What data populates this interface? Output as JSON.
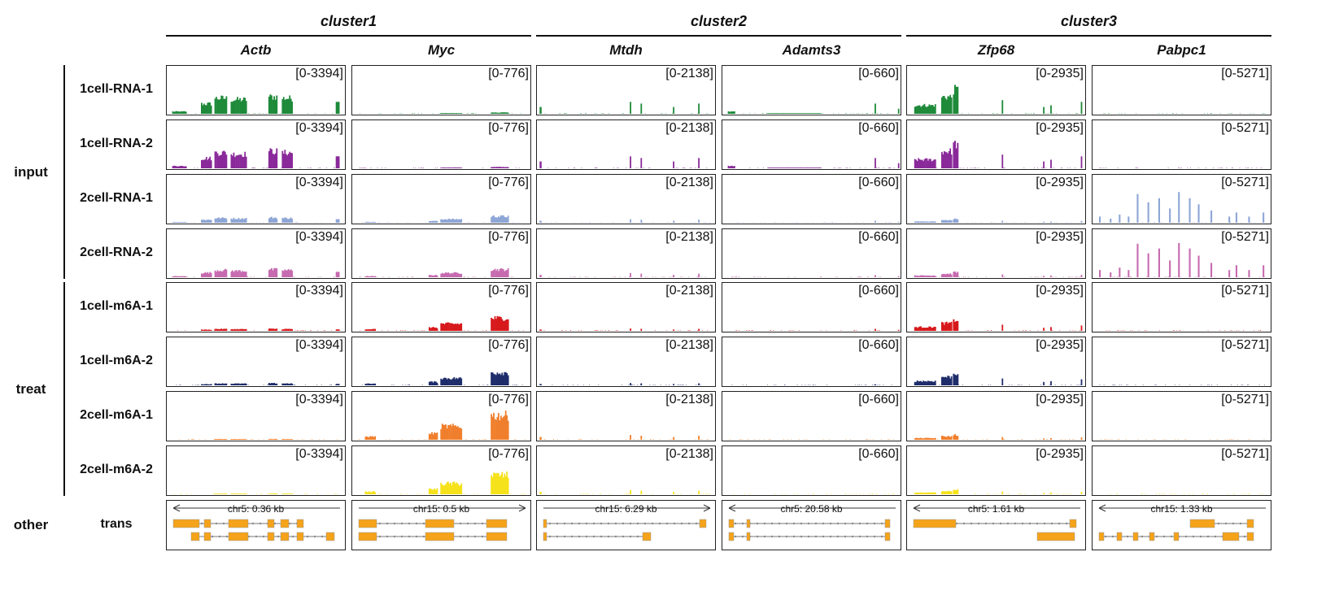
{
  "chart_data": {
    "type": "coverage_tracks",
    "clusters": [
      {
        "name": "cluster1",
        "genes": [
          "Actb",
          "Myc"
        ]
      },
      {
        "name": "cluster2",
        "genes": [
          "Mtdh",
          "Adamts3"
        ]
      },
      {
        "name": "cluster3",
        "genes": [
          "Zfp68",
          "Pabpc1"
        ]
      }
    ],
    "genes": [
      {
        "name": "Actb",
        "range": "[0-3394]",
        "locus": "chr5: 0.36 kb"
      },
      {
        "name": "Myc",
        "range": "[0-776]",
        "locus": "chr15: 0.5 kb"
      },
      {
        "name": "Mtdh",
        "range": "[0-2138]",
        "locus": "chr15: 6.29 kb"
      },
      {
        "name": "Adamts3",
        "range": "[0-660]",
        "locus": "chr5: 20.58 kb"
      },
      {
        "name": "Zfp68",
        "range": "[0-2935]",
        "locus": "chr5: 1.61 kb"
      },
      {
        "name": "Pabpc1",
        "range": "[0-5271]",
        "locus": "chr15: 1.33 kb"
      }
    ],
    "groups": [
      {
        "name": "input",
        "samples": [
          "1cell-RNA-1",
          "1cell-RNA-2",
          "2cell-RNA-1",
          "2cell-RNA-2"
        ]
      },
      {
        "name": "treat",
        "samples": [
          "1cell-m6A-1",
          "1cell-m6A-2",
          "2cell-m6A-1",
          "2cell-m6A-2"
        ]
      },
      {
        "name": "other",
        "samples": [
          "trans"
        ]
      }
    ],
    "sample_colors": {
      "1cell-RNA-1": "#1e8a3a",
      "1cell-RNA-2": "#8a2a9a",
      "2cell-RNA-1": "#8ea6d6",
      "2cell-RNA-2": "#c76bb0",
      "1cell-m6A-1": "#d7191c",
      "1cell-m6A-2": "#1f2d6b",
      "2cell-m6A-1": "#f07f2d",
      "2cell-m6A-2": "#f6e21a"
    },
    "transcript_color": "#f5a31a"
  }
}
